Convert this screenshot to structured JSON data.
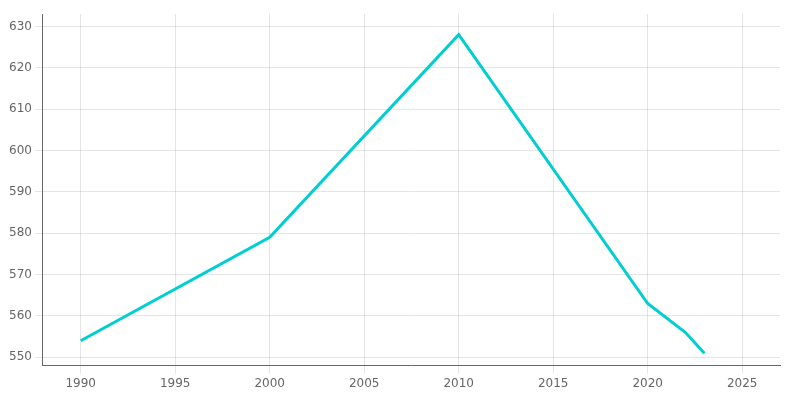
{
  "chart_data": {
    "type": "line",
    "x": [
      1990,
      2000,
      2010,
      2020,
      2022,
      2023
    ],
    "values": [
      554,
      579,
      628,
      563,
      556,
      551
    ],
    "color": "#00CED1",
    "xlim": [
      1988,
      2027
    ],
    "ylim": [
      548,
      633
    ],
    "xticks": [
      1990,
      1995,
      2000,
      2005,
      2010,
      2015,
      2020,
      2025
    ],
    "yticks": [
      550,
      560,
      570,
      580,
      590,
      600,
      610,
      620,
      630
    ],
    "grid": true
  }
}
